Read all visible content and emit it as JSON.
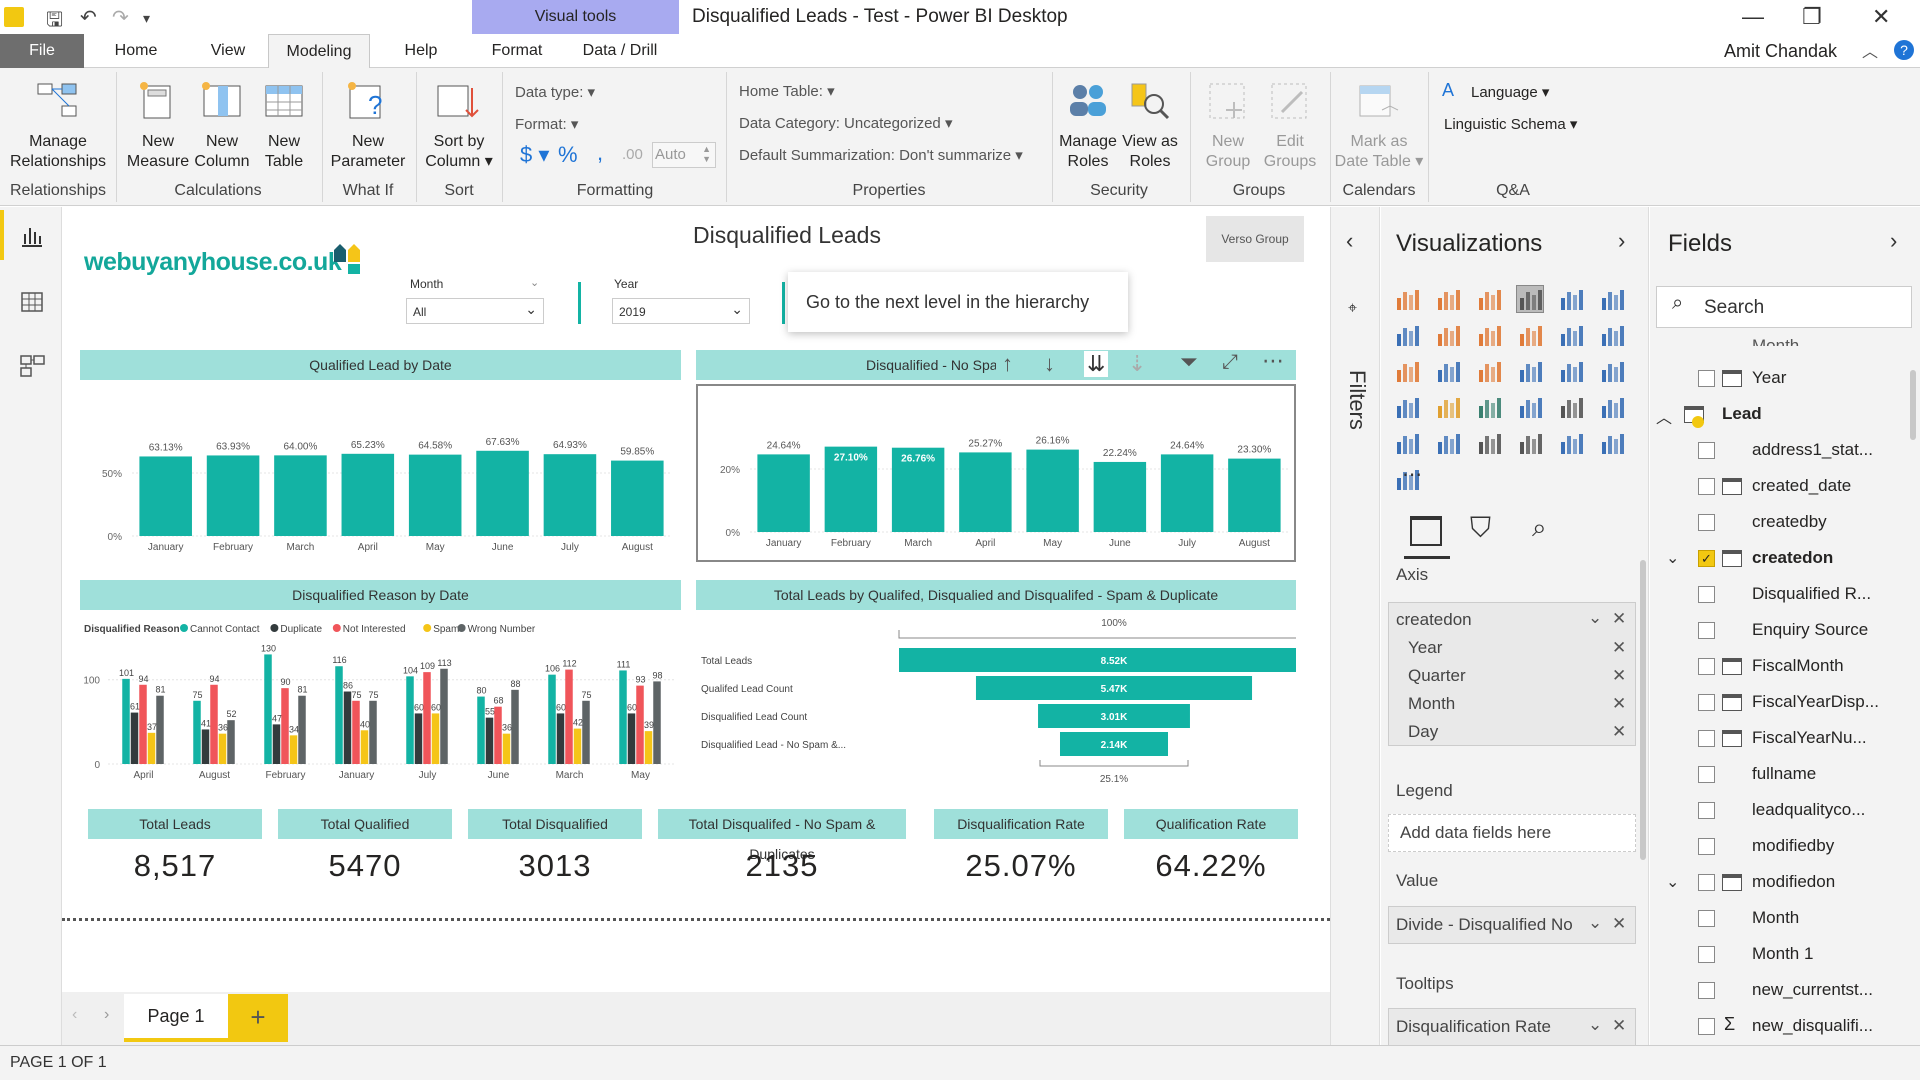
{
  "window": {
    "title": "Disqualified Leads - Test - Power BI Desktop",
    "context_tab_group": "Visual tools",
    "user": "Amit Chandak"
  },
  "tabs": {
    "file": "File",
    "home": "Home",
    "view": "View",
    "modeling": "Modeling",
    "help": "Help",
    "format": "Format",
    "data_drill": "Data / Drill"
  },
  "ribbon": {
    "manage_rel": [
      "Manage",
      "Relationships"
    ],
    "new_measure": [
      "New",
      "Measure"
    ],
    "new_column": [
      "New",
      "Column"
    ],
    "new_table": [
      "New",
      "Table"
    ],
    "new_parameter": [
      "New",
      "Parameter"
    ],
    "sort_by": [
      "Sort by",
      "Column ▾"
    ],
    "data_type": "Data type: ▾",
    "format": "Format: ▾",
    "currency": "$ ▾",
    "percent": "%",
    "comma": ",",
    "decimal": ".00",
    "auto": "Auto",
    "home_table": "Home Table: ▾",
    "data_category": "Data Category: Uncategorized ▾",
    "default_summ": "Default Summarization: Don't summarize ▾",
    "manage_roles": [
      "Manage",
      "Roles"
    ],
    "view_as_roles": [
      "View as",
      "Roles"
    ],
    "new_group": [
      "New",
      "Group"
    ],
    "edit_groups": [
      "Edit",
      "Groups"
    ],
    "mark_as": [
      "Mark as",
      "Date Table ▾"
    ],
    "language": "Language ▾",
    "linguistic": "Linguistic Schema ▾",
    "groups": {
      "relationships": "Relationships",
      "calculations": "Calculations",
      "whatif": "What If",
      "sort": "Sort",
      "formatting": "Formatting",
      "properties": "Properties",
      "security": "Security",
      "groups": "Groups",
      "calendars": "Calendars",
      "qa": "Q&A"
    }
  },
  "report": {
    "title": "Disqualified Leads",
    "logo": "webuyanyhouse.co.uk",
    "verso_btn": "Verso Group",
    "tooltip": "Go to the next level in the hierarchy",
    "slicer_month": {
      "label": "Month",
      "value": "All"
    },
    "slicer_year": {
      "label": "Year",
      "value": "2019"
    },
    "chart1": {
      "title": "Qualified Lead by Date",
      "yticks": [
        "50%",
        "0%"
      ],
      "categories": [
        "January",
        "February",
        "March",
        "April",
        "May",
        "June",
        "July",
        "August"
      ],
      "values": [
        63.13,
        63.93,
        64.0,
        65.23,
        64.58,
        67.63,
        64.93,
        59.85
      ],
      "labels": [
        "63.13%",
        "63.93%",
        "64.00%",
        "65.23%",
        "64.58%",
        "67.63%",
        "64.93%",
        "59.85%"
      ]
    },
    "chart2": {
      "title": "Disqualified - No Spam",
      "yticks": [
        "20%",
        "0%"
      ],
      "categories": [
        "January",
        "February",
        "March",
        "April",
        "May",
        "June",
        "July",
        "August"
      ],
      "values": [
        24.64,
        27.1,
        26.76,
        25.27,
        26.16,
        22.24,
        24.64,
        23.3
      ],
      "labels": [
        "24.64%",
        "27.10%",
        "26.76%",
        "25.27%",
        "26.16%",
        "22.24%",
        "24.64%",
        "23.30%"
      ]
    },
    "chart3": {
      "title": "Disqualified Reason by Date",
      "legend_title": "Disqualified Reason",
      "legend": [
        "Cannot Contact",
        "Duplicate",
        "Not Interested",
        "Spam",
        "Wrong Number"
      ],
      "yticks": [
        "100",
        "0"
      ],
      "categories": [
        "April",
        "August",
        "February",
        "January",
        "July",
        "June",
        "March",
        "May"
      ],
      "series": [
        {
          "name": "Cannot Contact",
          "color": "#13b3a4",
          "values": [
            101,
            75,
            130,
            116,
            104,
            80,
            106,
            111
          ]
        },
        {
          "name": "Duplicate",
          "color": "#333b3d",
          "values": [
            61,
            41,
            47,
            86,
            60,
            55,
            60,
            60
          ]
        },
        {
          "name": "Not Interested",
          "color": "#f0555a",
          "values": [
            94,
            94,
            90,
            75,
            109,
            68,
            112,
            93
          ]
        },
        {
          "name": "Spam",
          "color": "#f5c518",
          "values": [
            37,
            36,
            34,
            40,
            60,
            36,
            42,
            39
          ]
        },
        {
          "name": "Wrong Number",
          "color": "#5e6466",
          "values": [
            81,
            52,
            81,
            75,
            113,
            88,
            75,
            98
          ]
        }
      ]
    },
    "chart4": {
      "title": "Total Leads by Qualifed, Disqualied and Disqualifed - Spam & Duplicate",
      "top_label": "100%",
      "bottom_label": "25.1%",
      "rows": [
        {
          "name": "Total Leads",
          "value": 8.52,
          "label": "8.52K"
        },
        {
          "name": "Qualifed Lead Count",
          "value": 5.47,
          "label": "5.47K"
        },
        {
          "name": "Disqualified Lead Count",
          "value": 3.01,
          "label": "3.01K"
        },
        {
          "name": "Disqualified Lead - No Spam &...",
          "value": 2.14,
          "label": "2.14K"
        }
      ]
    },
    "cards": [
      {
        "label": "Total Leads",
        "value": "8,517"
      },
      {
        "label": "Total Qualified",
        "value": "5470"
      },
      {
        "label": "Total Disqualified",
        "value": "3013"
      },
      {
        "label": "Total Disqualifed - No Spam & Duplicates",
        "value": "2135"
      },
      {
        "label": "Disqualification Rate",
        "value": "25.07%"
      },
      {
        "label": "Qualification Rate",
        "value": "64.22%"
      }
    ]
  },
  "filters_label": "Filters",
  "visualizations": {
    "title": "Visualizations",
    "axis": "Axis",
    "axis_field": "createdon",
    "axis_items": [
      "Year",
      "Quarter",
      "Month",
      "Day"
    ],
    "legend": "Legend",
    "legend_placeholder": "Add data fields here",
    "value": "Value",
    "value_field": "Divide - Disqualified No",
    "tooltips": "Tooltips",
    "tooltip_field": "Disqualification Rate"
  },
  "fields": {
    "title": "Fields",
    "search_placeholder": "Search",
    "partial_top": "Month",
    "items": [
      "Year",
      "Lead",
      "address1_stat...",
      "created_date",
      "createdby",
      "createdon",
      "Disqualified R...",
      "Enquiry Source",
      "FiscalMonth",
      "FiscalYearDisp...",
      "FiscalYearNu...",
      "fullname",
      "leadqualityco...",
      "modifiedby",
      "modifiedon",
      "Month",
      "Month 1",
      "new_currentst...",
      "new_disqualifi..."
    ]
  },
  "pages": {
    "page1": "Page 1",
    "add": "+"
  },
  "status": "PAGE 1 OF 1"
}
